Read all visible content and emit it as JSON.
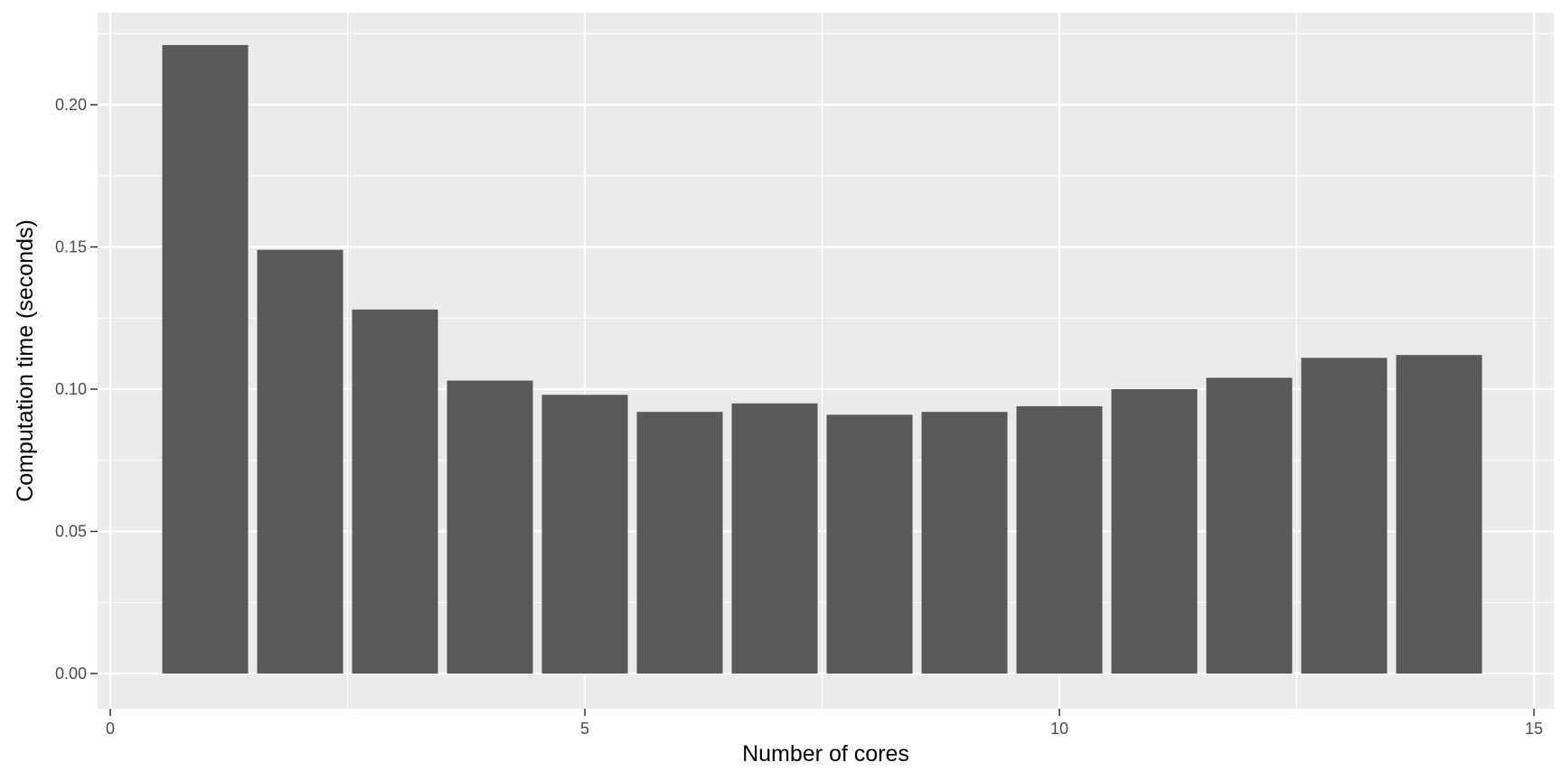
{
  "chart_data": {
    "type": "bar",
    "title": "",
    "xlabel": "Number of cores",
    "ylabel": "Computation time (seconds)",
    "x": [
      1,
      2,
      3,
      4,
      5,
      6,
      7,
      8,
      9,
      10,
      11,
      12,
      13,
      14
    ],
    "values": [
      0.221,
      0.149,
      0.128,
      0.103,
      0.098,
      0.092,
      0.095,
      0.091,
      0.092,
      0.094,
      0.1,
      0.104,
      0.111,
      0.112
    ],
    "xlim": [
      0,
      15
    ],
    "ylim": [
      0,
      0.22
    ],
    "x_ticks": [
      0,
      5,
      10,
      15
    ],
    "x_tick_labels": [
      "0",
      "5",
      "10",
      "15"
    ],
    "y_ticks": [
      0,
      0.05,
      0.1,
      0.15,
      0.2
    ],
    "y_tick_labels": [
      "0.00",
      "0.05",
      "0.10",
      "0.15",
      "0.20"
    ],
    "grid": true,
    "legend": "none",
    "colors": {
      "bar": "#595959",
      "panel_background": "#ebebeb",
      "grid_major": "#ffffff",
      "grid_minor": "#ffffff",
      "tick_label": "#4d4d4d",
      "axis_title": "#000000",
      "tick_mark": "#333333"
    }
  }
}
